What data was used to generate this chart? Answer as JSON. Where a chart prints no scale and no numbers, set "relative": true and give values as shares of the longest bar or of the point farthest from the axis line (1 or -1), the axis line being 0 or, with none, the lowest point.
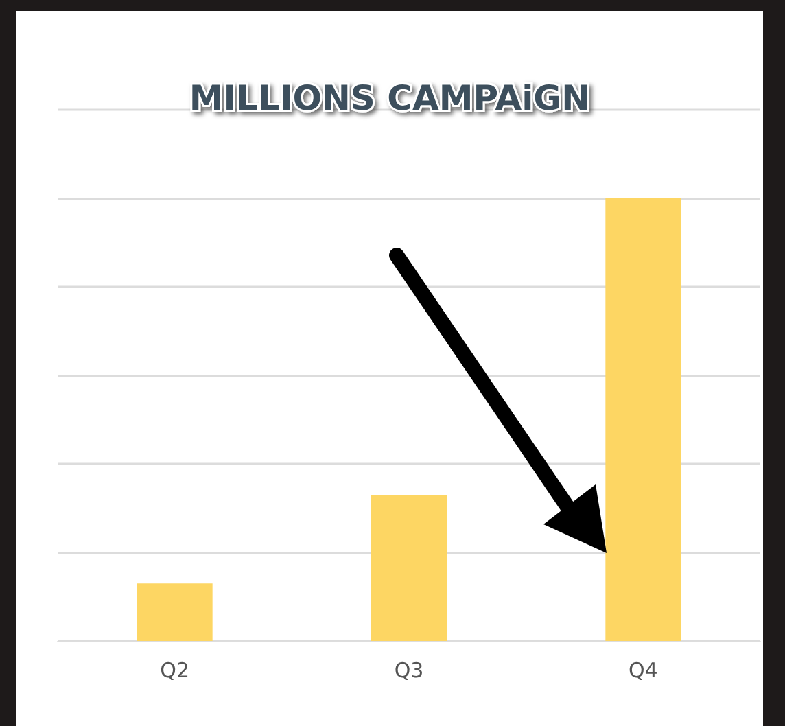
{
  "chart_data": {
    "type": "bar",
    "title": "MILLIONS CAMPAiGN",
    "categories": [
      "Q2",
      "Q3",
      "Q4"
    ],
    "values": [
      0.13,
      0.33,
      1
    ],
    "color": "#fdd663",
    "relative": true,
    "grid": "y"
  }
}
